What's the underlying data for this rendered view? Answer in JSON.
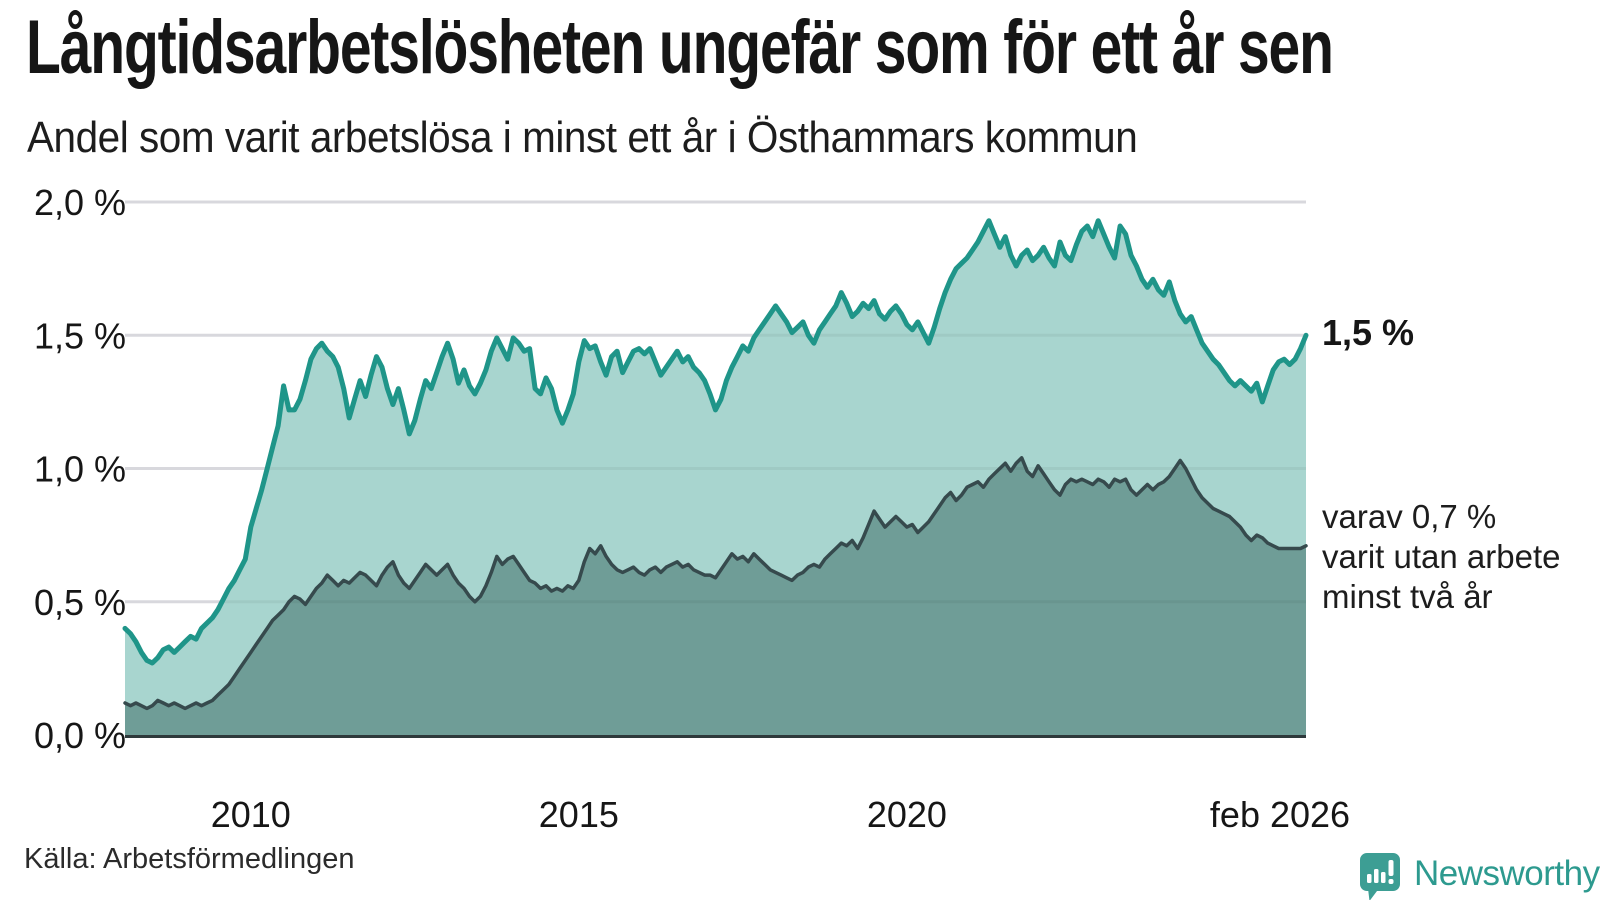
{
  "header": {
    "title": "Långtidsarbetslösheten ungefär som för ett år sen",
    "subtitle": "Andel som varit arbetslösa i minst ett år i Östhammars kommun"
  },
  "annotations": {
    "total_end_label": "1,5 %",
    "sub_end_label": "varav 0,7 %\nvarit utan arbete\nminst två år"
  },
  "source": {
    "label": "Källa: Arbetsförmedlingen"
  },
  "branding": {
    "name": "Newsworthy",
    "logo_icon": "speech-bubble-bar-chart-icon",
    "text_color": "#2d9a8f",
    "icon_color": "#3d9e94"
  },
  "colors": {
    "total_line": "#1f9589",
    "total_fill": "#a8d5cf",
    "sub_line": "#364a4d",
    "sub_fill": "#6f9d97",
    "grid": "#e4e4e9",
    "axis": "#2e393b",
    "tick_text": "#161616"
  },
  "chart_data": {
    "type": "area",
    "title": "Långtidsarbetslösheten ungefär som för ett år sen",
    "subtitle": "Andel som varit arbetslösa i minst ett år i Östhammars kommun",
    "unit": "%",
    "frequency": "monthly",
    "x_start": "2008-02",
    "x_end": "2026-02",
    "x_start_decimal": 2008.083,
    "x_end_decimal": 2026.083,
    "ylim": [
      0,
      2.0
    ],
    "grid": true,
    "legend_position": "right-edge-annotations",
    "yticks": [
      {
        "value": 2.0,
        "label": "2,0 %"
      },
      {
        "value": 1.5,
        "label": "1,5 %"
      },
      {
        "value": 1.0,
        "label": "1,0 %"
      },
      {
        "value": 0.5,
        "label": "0,5 %"
      },
      {
        "value": 0.0,
        "label": "0,0 %"
      }
    ],
    "xticks": [
      {
        "year": 2010.0,
        "label": "2010"
      },
      {
        "year": 2015.0,
        "label": "2015"
      },
      {
        "year": 2020.0,
        "label": "2020"
      },
      {
        "year": 2026.083,
        "label": "feb 2026"
      }
    ],
    "series": [
      {
        "name": "Arbetslösa minst ett år",
        "end_value_label": "1,5 %",
        "line_color": "#1f9589",
        "fill_color": "#a8d5cf",
        "values": [
          0.4,
          0.38,
          0.35,
          0.31,
          0.28,
          0.27,
          0.29,
          0.32,
          0.33,
          0.31,
          0.33,
          0.35,
          0.37,
          0.36,
          0.4,
          0.42,
          0.44,
          0.47,
          0.51,
          0.55,
          0.58,
          0.62,
          0.66,
          0.78,
          0.85,
          0.92,
          1.0,
          1.08,
          1.16,
          1.31,
          1.22,
          1.22,
          1.26,
          1.33,
          1.41,
          1.45,
          1.47,
          1.44,
          1.42,
          1.38,
          1.3,
          1.19,
          1.26,
          1.33,
          1.27,
          1.35,
          1.42,
          1.38,
          1.3,
          1.24,
          1.3,
          1.22,
          1.13,
          1.18,
          1.26,
          1.33,
          1.3,
          1.36,
          1.42,
          1.47,
          1.41,
          1.32,
          1.37,
          1.31,
          1.28,
          1.32,
          1.37,
          1.44,
          1.49,
          1.45,
          1.41,
          1.49,
          1.47,
          1.44,
          1.45,
          1.3,
          1.28,
          1.34,
          1.3,
          1.22,
          1.17,
          1.22,
          1.28,
          1.4,
          1.48,
          1.45,
          1.46,
          1.4,
          1.35,
          1.42,
          1.44,
          1.36,
          1.4,
          1.44,
          1.45,
          1.43,
          1.45,
          1.4,
          1.35,
          1.38,
          1.41,
          1.44,
          1.4,
          1.42,
          1.38,
          1.36,
          1.33,
          1.28,
          1.22,
          1.26,
          1.33,
          1.38,
          1.42,
          1.46,
          1.44,
          1.49,
          1.52,
          1.55,
          1.58,
          1.61,
          1.58,
          1.55,
          1.51,
          1.53,
          1.55,
          1.5,
          1.47,
          1.52,
          1.55,
          1.58,
          1.61,
          1.66,
          1.62,
          1.57,
          1.59,
          1.62,
          1.6,
          1.63,
          1.58,
          1.56,
          1.59,
          1.61,
          1.58,
          1.54,
          1.52,
          1.55,
          1.51,
          1.47,
          1.53,
          1.6,
          1.66,
          1.71,
          1.75,
          1.77,
          1.79,
          1.82,
          1.85,
          1.89,
          1.93,
          1.88,
          1.83,
          1.87,
          1.8,
          1.76,
          1.8,
          1.82,
          1.78,
          1.8,
          1.83,
          1.79,
          1.76,
          1.85,
          1.8,
          1.78,
          1.84,
          1.89,
          1.91,
          1.87,
          1.93,
          1.88,
          1.83,
          1.79,
          1.91,
          1.88,
          1.8,
          1.76,
          1.71,
          1.68,
          1.71,
          1.67,
          1.65,
          1.7,
          1.63,
          1.58,
          1.55,
          1.57,
          1.52,
          1.47,
          1.44,
          1.41,
          1.39,
          1.36,
          1.33,
          1.31,
          1.33,
          1.31,
          1.29,
          1.32,
          1.25,
          1.31,
          1.37,
          1.4,
          1.41,
          1.39,
          1.41,
          1.45,
          1.5
        ]
      },
      {
        "name": "varav utan arbete minst två år",
        "end_value_label": "0,7 %",
        "line_color": "#364a4d",
        "fill_color": "#6f9d97",
        "values": [
          0.12,
          0.11,
          0.12,
          0.11,
          0.1,
          0.11,
          0.13,
          0.12,
          0.11,
          0.12,
          0.11,
          0.1,
          0.11,
          0.12,
          0.11,
          0.12,
          0.13,
          0.15,
          0.17,
          0.19,
          0.22,
          0.25,
          0.28,
          0.31,
          0.34,
          0.37,
          0.4,
          0.43,
          0.45,
          0.47,
          0.5,
          0.52,
          0.51,
          0.49,
          0.52,
          0.55,
          0.57,
          0.6,
          0.58,
          0.56,
          0.58,
          0.57,
          0.59,
          0.61,
          0.6,
          0.58,
          0.56,
          0.6,
          0.63,
          0.65,
          0.6,
          0.57,
          0.55,
          0.58,
          0.61,
          0.64,
          0.62,
          0.6,
          0.62,
          0.64,
          0.6,
          0.57,
          0.55,
          0.52,
          0.5,
          0.52,
          0.56,
          0.61,
          0.67,
          0.64,
          0.66,
          0.67,
          0.64,
          0.61,
          0.58,
          0.57,
          0.55,
          0.56,
          0.54,
          0.55,
          0.54,
          0.56,
          0.55,
          0.58,
          0.65,
          0.7,
          0.68,
          0.71,
          0.67,
          0.64,
          0.62,
          0.61,
          0.62,
          0.63,
          0.61,
          0.6,
          0.62,
          0.63,
          0.61,
          0.63,
          0.64,
          0.65,
          0.63,
          0.64,
          0.62,
          0.61,
          0.6,
          0.6,
          0.59,
          0.62,
          0.65,
          0.68,
          0.66,
          0.67,
          0.65,
          0.68,
          0.66,
          0.64,
          0.62,
          0.61,
          0.6,
          0.59,
          0.58,
          0.6,
          0.61,
          0.63,
          0.64,
          0.63,
          0.66,
          0.68,
          0.7,
          0.72,
          0.71,
          0.73,
          0.7,
          0.74,
          0.79,
          0.84,
          0.81,
          0.78,
          0.8,
          0.82,
          0.8,
          0.78,
          0.79,
          0.76,
          0.78,
          0.8,
          0.83,
          0.86,
          0.89,
          0.91,
          0.88,
          0.9,
          0.93,
          0.94,
          0.95,
          0.93,
          0.96,
          0.98,
          1.0,
          1.02,
          0.99,
          1.02,
          1.04,
          0.99,
          0.97,
          1.01,
          0.98,
          0.95,
          0.92,
          0.9,
          0.94,
          0.96,
          0.95,
          0.96,
          0.95,
          0.94,
          0.96,
          0.95,
          0.93,
          0.96,
          0.95,
          0.96,
          0.92,
          0.9,
          0.92,
          0.94,
          0.92,
          0.94,
          0.95,
          0.97,
          1.0,
          1.03,
          1.0,
          0.96,
          0.92,
          0.89,
          0.87,
          0.85,
          0.84,
          0.83,
          0.82,
          0.8,
          0.78,
          0.75,
          0.73,
          0.75,
          0.74,
          0.72,
          0.71,
          0.7,
          0.7,
          0.7,
          0.7,
          0.7,
          0.71
        ]
      }
    ]
  }
}
